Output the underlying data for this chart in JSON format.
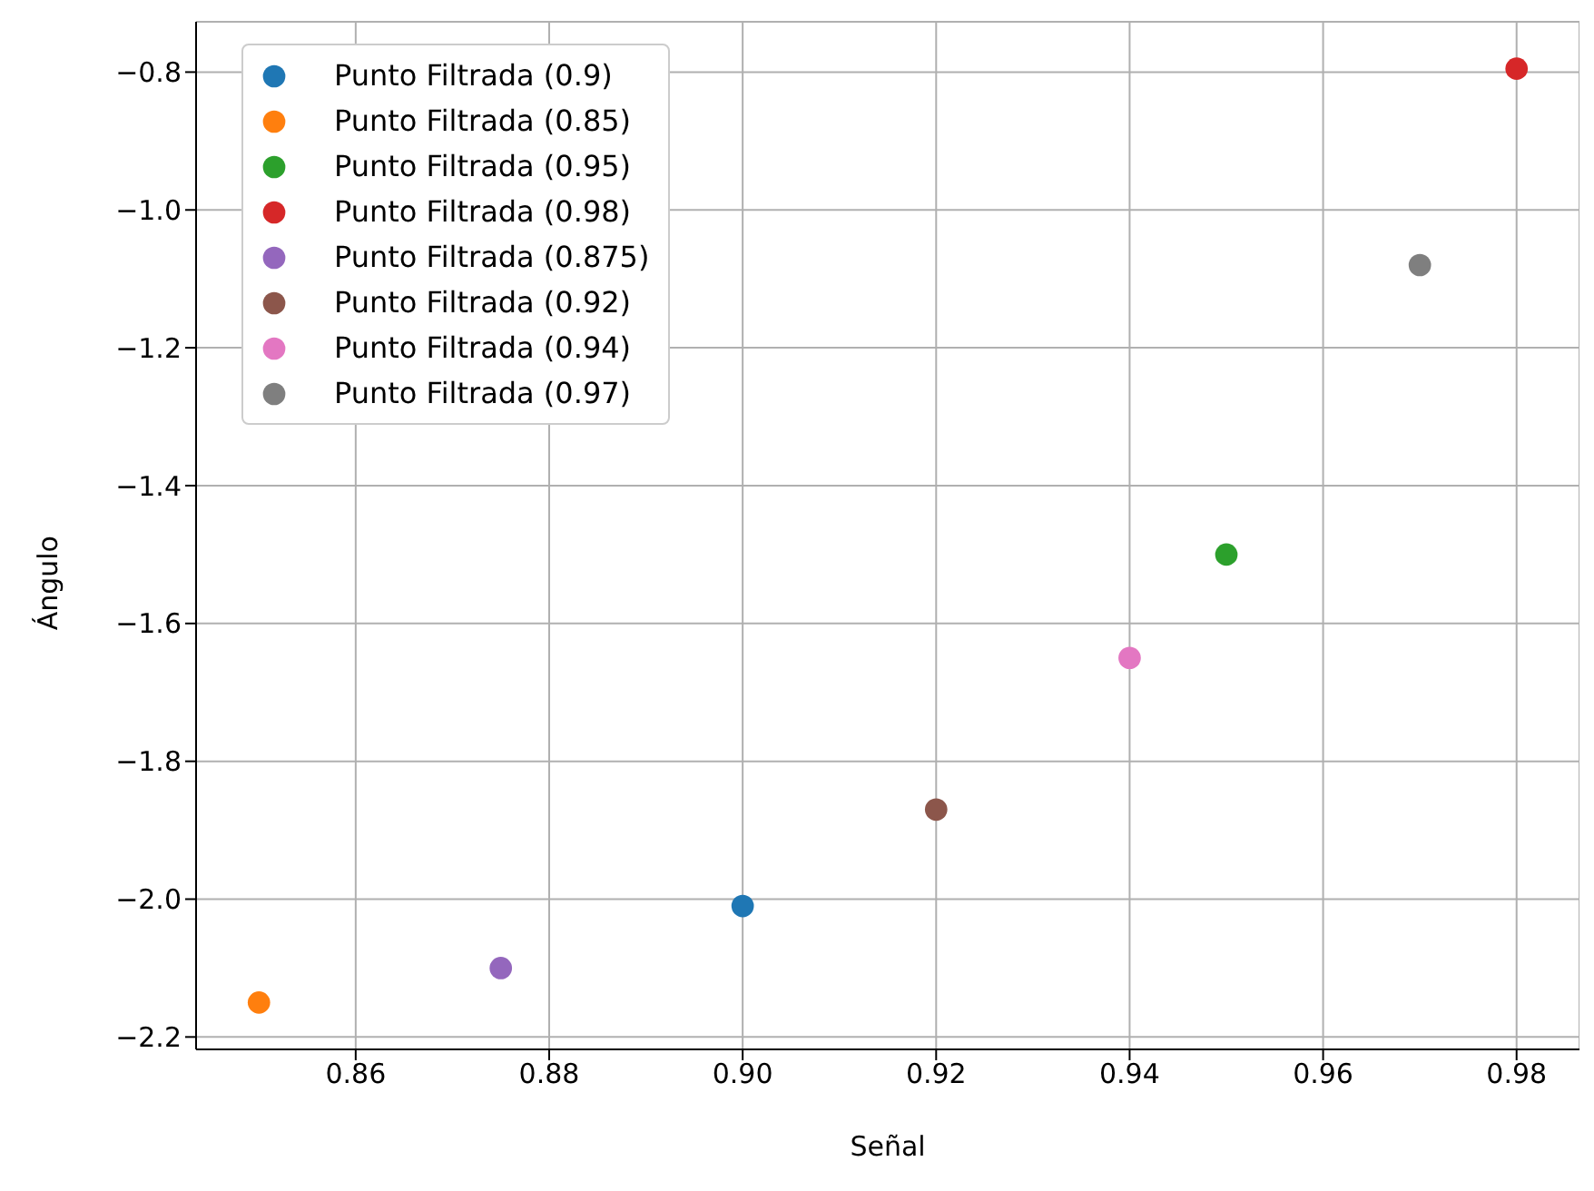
{
  "chart_data": {
    "type": "scatter",
    "xlabel": "Señal",
    "ylabel": "Ángulo",
    "xlim": [
      0.8435,
      0.9865
    ],
    "xticks": [
      {
        "value": 0.86,
        "label": "0.86"
      },
      {
        "value": 0.88,
        "label": "0.88"
      },
      {
        "value": 0.9,
        "label": "0.90"
      },
      {
        "value": 0.92,
        "label": "0.92"
      },
      {
        "value": 0.94,
        "label": "0.94"
      },
      {
        "value": 0.96,
        "label": "0.96"
      },
      {
        "value": 0.98,
        "label": "0.98"
      }
    ],
    "ylim": [
      -2.218,
      -0.727
    ],
    "yticks": [
      {
        "value": -2.2,
        "label": "−2.2"
      },
      {
        "value": -2.0,
        "label": "−2.0"
      },
      {
        "value": -1.8,
        "label": "−1.8"
      },
      {
        "value": -1.6,
        "label": "−1.6"
      },
      {
        "value": -1.4,
        "label": "−1.4"
      },
      {
        "value": -1.2,
        "label": "−1.2"
      },
      {
        "value": -1.0,
        "label": "−1.0"
      },
      {
        "value": -0.8,
        "label": "−0.8"
      }
    ],
    "grid": true,
    "legend": "top left",
    "marker": "circle",
    "series": [
      {
        "name": "Punto Filtrada (0.9)",
        "color": "#1f77b4",
        "x": [
          0.9
        ],
        "values": [
          -2.01
        ]
      },
      {
        "name": "Punto Filtrada (0.85)",
        "color": "#ff7f0e",
        "x": [
          0.85
        ],
        "values": [
          -2.15
        ]
      },
      {
        "name": "Punto Filtrada (0.95)",
        "color": "#2ca02c",
        "x": [
          0.95
        ],
        "values": [
          -1.5
        ]
      },
      {
        "name": "Punto Filtrada (0.98)",
        "color": "#d62728",
        "x": [
          0.98
        ],
        "values": [
          -0.795
        ]
      },
      {
        "name": "Punto Filtrada (0.875)",
        "color": "#9467bd",
        "x": [
          0.875
        ],
        "values": [
          -2.1
        ]
      },
      {
        "name": "Punto Filtrada (0.92)",
        "color": "#8c564b",
        "x": [
          0.92
        ],
        "values": [
          -1.87
        ]
      },
      {
        "name": "Punto Filtrada (0.94)",
        "color": "#e377c2",
        "x": [
          0.94
        ],
        "values": [
          -1.65
        ]
      },
      {
        "name": "Punto Filtrada (0.97)",
        "color": "#7f7f7f",
        "x": [
          0.97
        ],
        "values": [
          -1.08
        ]
      }
    ]
  }
}
